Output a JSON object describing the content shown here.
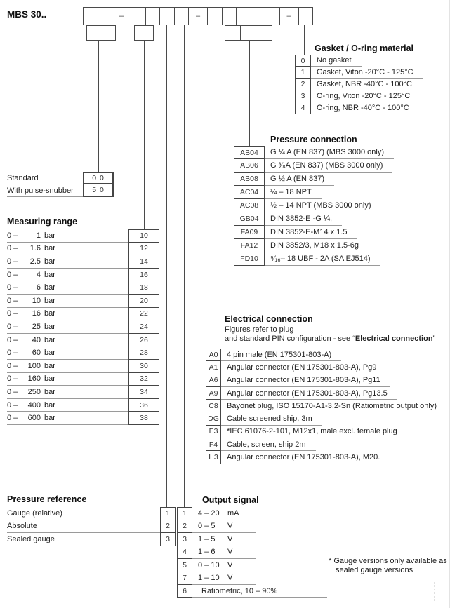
{
  "product_title": "MBS 30..",
  "type_code": {
    "cells": [
      "",
      "",
      "–",
      "",
      "",
      "",
      "",
      "–",
      "",
      "",
      "",
      "",
      "",
      "–",
      ""
    ]
  },
  "tables": {
    "gasket": {
      "title": "Gasket / O-ring material",
      "rows": [
        {
          "code": "0",
          "desc": "No gasket"
        },
        {
          "code": "1",
          "desc": "Gasket, Viton -20°C - 125°C"
        },
        {
          "code": "2",
          "desc": "Gasket, NBR -40°C - 100°C"
        },
        {
          "code": "3",
          "desc": "O-ring, Viton -20°C - 125°C"
        },
        {
          "code": "4",
          "desc": "O-ring, NBR -40°C - 100°C"
        }
      ]
    },
    "pressure_connection": {
      "title": "Pressure connection",
      "rows": [
        {
          "code": "AB04",
          "desc": "G ¼ A (EN 837) (MBS 3000 only)"
        },
        {
          "code": "AB06",
          "desc": "G  ³⁄₈A (EN 837) (MBS 3000 only)"
        },
        {
          "code": "AB08",
          "desc": "G ½ A (EN 837)"
        },
        {
          "code": "AC04",
          "desc": "¼ – 18 NPT"
        },
        {
          "code": "AC08",
          "desc": "½ – 14 NPT (MBS 3000 only)"
        },
        {
          "code": "GB04",
          "desc": "DIN 3852-E -G ¼,"
        },
        {
          "code": "FA09",
          "desc": "DIN 3852-E-M14 x 1.5"
        },
        {
          "code": "FA12",
          "desc": "DIN 3852/3, M18 x 1.5-6g"
        },
        {
          "code": "FD10",
          "desc": "⁹⁄₁₆– 18 UBF - 2A (SA EJ514)"
        }
      ]
    },
    "variant": {
      "rows": [
        {
          "label": "Standard",
          "code": "0 0"
        },
        {
          "label": "With pulse-snubber",
          "code": "5 0"
        }
      ]
    },
    "measuring_range": {
      "title": "Measuring range",
      "rows": [
        {
          "prefix": "0 –",
          "value": "1",
          "unit": "bar",
          "code": "10"
        },
        {
          "prefix": "0 –",
          "value": "1.6",
          "unit": "bar",
          "code": "12"
        },
        {
          "prefix": "0 –",
          "value": "2.5",
          "unit": "bar",
          "code": "14"
        },
        {
          "prefix": "0 –",
          "value": "4",
          "unit": "bar",
          "code": "16"
        },
        {
          "prefix": "0 –",
          "value": "6",
          "unit": "bar",
          "code": "18"
        },
        {
          "prefix": "0 –",
          "value": "10",
          "unit": "bar",
          "code": "20"
        },
        {
          "prefix": "0 –",
          "value": "16",
          "unit": "bar",
          "code": "22"
        },
        {
          "prefix": "0 –",
          "value": "25",
          "unit": "bar",
          "code": "24"
        },
        {
          "prefix": "0 –",
          "value": "40",
          "unit": "bar",
          "code": "26"
        },
        {
          "prefix": "0 –",
          "value": "60",
          "unit": "bar",
          "code": "28"
        },
        {
          "prefix": "0 –",
          "value": "100",
          "unit": "bar",
          "code": "30"
        },
        {
          "prefix": "0 –",
          "value": "160",
          "unit": "bar",
          "code": "32"
        },
        {
          "prefix": "0 –",
          "value": "250",
          "unit": "bar",
          "code": "34"
        },
        {
          "prefix": "0 –",
          "value": "400",
          "unit": "bar",
          "code": "36"
        },
        {
          "prefix": "0 –",
          "value": "600",
          "unit": "bar",
          "code": "38"
        }
      ]
    },
    "electrical": {
      "title": "Electrical connection",
      "note1": "Figures refer to plug",
      "note2_pre": "and standard PIN configuration - see “",
      "note2_bold": "Electrical connection",
      "note2_post": "”",
      "rows": [
        {
          "code": "A0",
          "desc": "4 pin male (EN 175301-803-A)"
        },
        {
          "code": "A1",
          "desc": "Angular connector (EN 175301-803-A), Pg9"
        },
        {
          "code": "A6",
          "desc": "Angular connector (EN 175301-803-A), Pg11"
        },
        {
          "code": "A9",
          "desc": "Angular connector (EN 175301-803-A), Pg13.5"
        },
        {
          "code": "C8",
          "desc": "Bayonet plug, ISO 15170-A1-3.2-Sn (Ratiometric output only)"
        },
        {
          "code": "DG",
          "desc": "Cable screened ship, 3m"
        },
        {
          "code": "E3",
          "desc": "*IEC 61076-2-101, M12x1, male excl. female plug"
        },
        {
          "code": "F4",
          "desc": "Cable, screen, ship 2m"
        },
        {
          "code": "H3",
          "desc": "Angular connector (EN 175301-803-A), M20."
        }
      ]
    },
    "pressure_reference": {
      "title": "Pressure reference",
      "rows": [
        {
          "label": "Gauge (relative)",
          "code": "1"
        },
        {
          "label": "Absolute",
          "code": "2"
        },
        {
          "label": "Sealed gauge",
          "code": "3"
        }
      ]
    },
    "output_signal": {
      "title": "Output signal",
      "rows": [
        {
          "code": "1",
          "value": "4 – 20",
          "unit": "mA"
        },
        {
          "code": "2",
          "value": "0 – 5",
          "unit": "V"
        },
        {
          "code": "3",
          "value": "1 – 5",
          "unit": "V"
        },
        {
          "code": "4",
          "value": "1 – 6",
          "unit": "V"
        },
        {
          "code": "5",
          "value": "0 – 10",
          "unit": "V"
        },
        {
          "code": "7",
          "value": "1 – 10",
          "unit": "V"
        },
        {
          "code": "6",
          "label": "Ratiometric, 10 – 90%"
        }
      ]
    }
  },
  "footnote": {
    "line1": "* Gauge versions only available as",
    "line2": "sealed gauge versions"
  },
  "corner_note": {
    "line1": "·······",
    "line2": "·······"
  }
}
